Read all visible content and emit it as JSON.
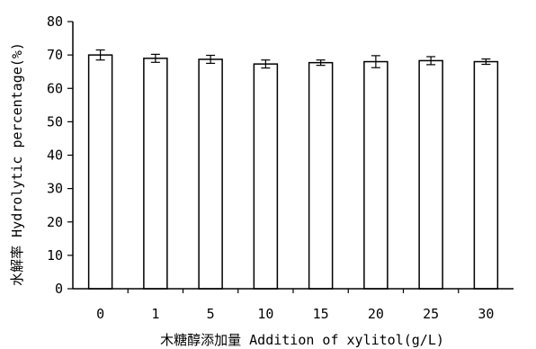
{
  "chart_data": {
    "type": "bar",
    "title": "",
    "xlabel": "木糖醇添加量 Addition of xylitol(g/L)",
    "ylabel": "水解率 Hydrolytic percentage(%)",
    "categories": [
      "0",
      "1",
      "5",
      "10",
      "15",
      "20",
      "25",
      "30"
    ],
    "values": [
      70.0,
      69.0,
      68.7,
      67.3,
      67.7,
      68.0,
      68.3,
      68.0
    ],
    "errors": [
      1.5,
      1.2,
      1.2,
      1.2,
      0.8,
      1.8,
      1.2,
      0.8
    ],
    "ylim": [
      0,
      80
    ],
    "yticks": [
      "0",
      "10",
      "20",
      "30",
      "40",
      "50",
      "60",
      "70",
      "80"
    ],
    "grid": false,
    "legend": "none",
    "bar_fill": "#ffffff",
    "bar_stroke": "#000000"
  }
}
